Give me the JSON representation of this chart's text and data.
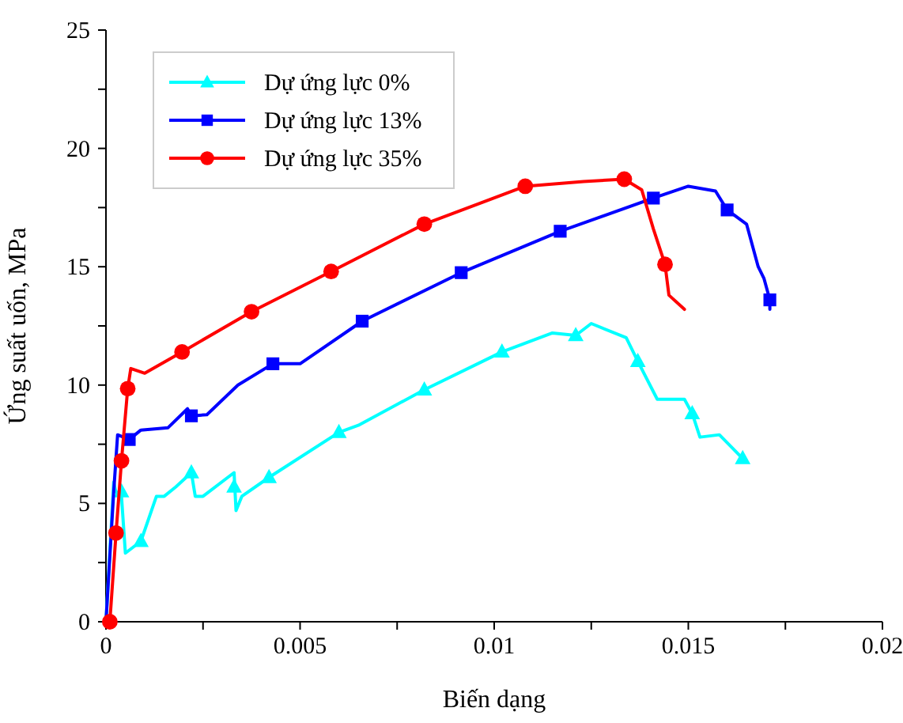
{
  "chart_data": {
    "type": "line",
    "xlabel": "Biến dạng",
    "ylabel": "Ứng suất uốn, MPa",
    "xlim": [
      0,
      0.02
    ],
    "ylim": [
      0,
      25
    ],
    "xticks": [
      0,
      {
        "value": 0.0025,
        "label": null
      },
      0.005,
      {
        "value": 0.0075,
        "label": null
      },
      0.01,
      {
        "value": 0.0125,
        "label": null
      },
      0.015,
      {
        "value": 0.0175,
        "label": null
      },
      0.02
    ],
    "yticks": [
      0,
      {
        "value": 2.5,
        "label": null
      },
      5,
      {
        "value": 7.5,
        "label": null
      },
      10,
      {
        "value": 12.5,
        "label": null
      },
      15,
      {
        "value": 17.5,
        "label": null
      },
      20,
      {
        "value": 22.5,
        "label": null
      },
      25
    ],
    "grid": false,
    "legend": "top left",
    "line_style": "solid",
    "series": [
      {
        "name": "Dự ứng lực 0%",
        "color": "#00ffff",
        "marker": "none",
        "x": [
          0,
          0.0002,
          0.00025,
          0.0004,
          0.0005,
          0.0009,
          0.0013,
          0.0015,
          0.0018,
          0.0022,
          0.0023,
          0.0025,
          0.0033,
          0.00335,
          0.0035,
          0.0042,
          0.006,
          0.0065,
          0.0082,
          0.0102,
          0.0115,
          0.0121,
          0.0125,
          0.0134,
          0.0137,
          0.0142,
          0.0149,
          0.0151,
          0.0153,
          0.0158,
          0.0164
        ],
        "values": [
          0,
          5.9,
          5.5,
          5.3,
          2.9,
          3.4,
          5.3,
          5.3,
          5.7,
          6.3,
          5.3,
          5.3,
          6.3,
          4.7,
          5.3,
          6.1,
          8.0,
          8.3,
          9.8,
          11.4,
          12.2,
          12.1,
          12.6,
          12.0,
          11.0,
          9.4,
          9.4,
          8.8,
          7.8,
          7.9,
          6.9
        ]
      },
      {
        "color": "#00ffff",
        "type": "scatter",
        "marker": "triangle",
        "x": [
          0.0004,
          0.0009,
          0.0022,
          0.0033,
          0.0042,
          0.006,
          0.0082,
          0.0102,
          0.0121,
          0.0137,
          0.0151,
          0.0164
        ],
        "values": [
          5.5,
          3.4,
          6.3,
          5.7,
          6.1,
          8.0,
          9.8,
          11.4,
          12.1,
          11.0,
          8.8,
          6.9
        ]
      },
      {
        "name": "Dự ứng lực 13%",
        "color": "#0000ff",
        "marker": "none",
        "x": [
          0,
          0.0002,
          0.0003,
          0.0006,
          0.0009,
          0.0016,
          0.0021,
          0.0022,
          0.0026,
          0.0034,
          0.0043,
          0.005,
          0.0066,
          0.00915,
          0.0117,
          0.0141,
          0.015,
          0.0157,
          0.016,
          0.0165,
          0.0168,
          0.01695,
          0.0171,
          0.0171
        ],
        "values": [
          0,
          5.5,
          7.9,
          7.7,
          8.1,
          8.2,
          9.0,
          8.7,
          8.75,
          10.0,
          10.9,
          10.9,
          12.7,
          14.75,
          16.5,
          17.9,
          18.4,
          18.2,
          17.4,
          16.8,
          15.0,
          14.5,
          13.6,
          13.2
        ]
      },
      {
        "color": "#0000ff",
        "type": "scatter",
        "marker": "square",
        "x": [
          0.0006,
          0.0022,
          0.0043,
          0.0066,
          0.00915,
          0.0117,
          0.0141,
          0.016,
          0.0171
        ],
        "values": [
          7.7,
          8.7,
          10.9,
          12.7,
          14.75,
          16.5,
          17.9,
          17.4,
          13.6
        ]
      },
      {
        "name": "Dự ứng lực 35%",
        "color": "#ff0000",
        "marker": "none",
        "x": [
          0.0001,
          0.00026,
          0.0004,
          0.00056,
          0.00064,
          0.001,
          0.00196,
          0.00375,
          0.0058,
          0.0082,
          0.0108,
          0.0123,
          0.01335,
          0.0138,
          0.0141,
          0.0144,
          0.0145,
          0.0149
        ],
        "values": [
          0,
          3.75,
          6.8,
          9.85,
          10.7,
          10.5,
          11.4,
          13.1,
          14.8,
          16.8,
          18.4,
          18.6,
          18.7,
          18.25,
          16.6,
          15.1,
          13.8,
          13.2
        ]
      },
      {
        "color": "#ff0000",
        "type": "scatter",
        "marker": "circle",
        "x": [
          0.0001,
          0.00026,
          0.0004,
          0.00056,
          0.00196,
          0.00375,
          0.0058,
          0.0082,
          0.0108,
          0.01335,
          0.0144
        ],
        "values": [
          0,
          3.75,
          6.8,
          9.85,
          11.4,
          13.1,
          14.8,
          16.8,
          18.4,
          18.7,
          15.1
        ]
      }
    ]
  }
}
